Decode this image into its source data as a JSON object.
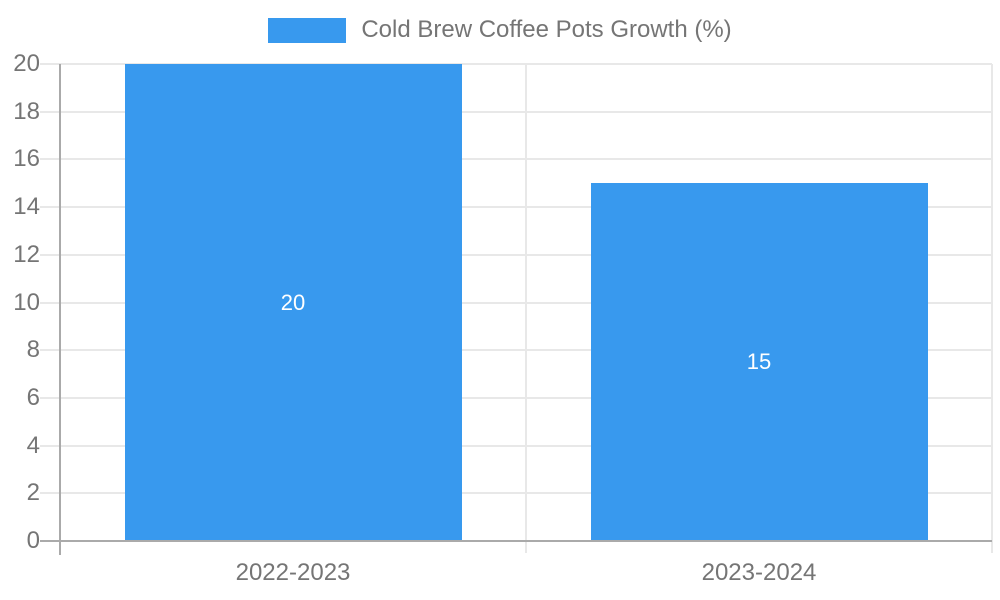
{
  "chart_data": {
    "type": "bar",
    "title": "",
    "legend": {
      "label": "Cold Brew Coffee Pots Growth (%)",
      "position": "top"
    },
    "categories": [
      "2022-2023",
      "2023-2024"
    ],
    "series": [
      {
        "name": "Cold Brew Coffee Pots Growth (%)",
        "values": [
          20,
          15
        ],
        "color": "#3899ee"
      }
    ],
    "data_labels": [
      "20",
      "15"
    ],
    "xlabel": "",
    "ylabel": "",
    "ylim": [
      0,
      20
    ],
    "yticks": [
      0,
      2,
      4,
      6,
      8,
      10,
      12,
      14,
      16,
      18,
      20
    ],
    "grid": true,
    "colors": {
      "bar": "#3899ee",
      "axis": "#aaaaaa",
      "grid": "#e8e8e8",
      "text": "#757575",
      "data_label": "#ffffff",
      "background": "#ffffff"
    }
  }
}
